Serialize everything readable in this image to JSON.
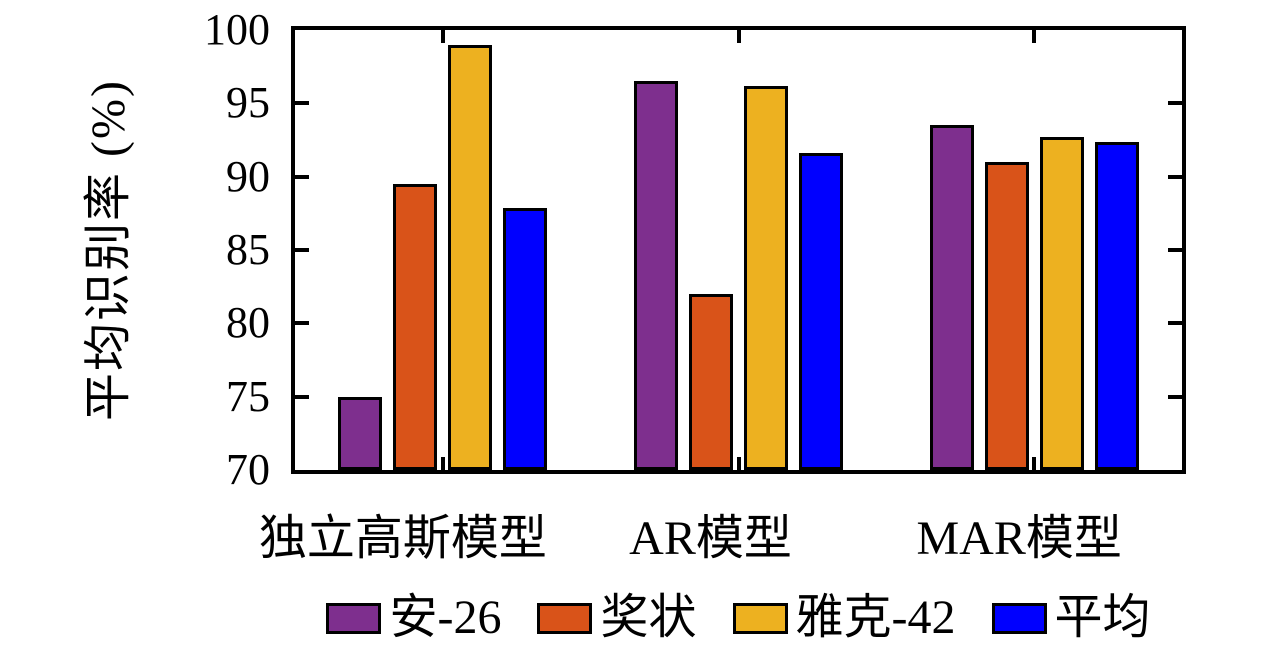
{
  "chart_data": {
    "type": "bar",
    "title": "",
    "xlabel": "",
    "ylabel": "平均识别率 (%)",
    "ylim": [
      70,
      100
    ],
    "yticks": [
      70,
      75,
      80,
      85,
      90,
      95,
      100
    ],
    "grid": false,
    "legend_position": "bottom",
    "categories": [
      "独立高斯模型",
      "AR模型",
      "MAR模型"
    ],
    "series": [
      {
        "name": "安-26",
        "color": "#7E2F8E",
        "values": [
          75.0,
          96.5,
          93.5
        ]
      },
      {
        "name": "奖状",
        "color": "#D95319",
        "values": [
          89.5,
          82.0,
          91.0
        ]
      },
      {
        "name": "雅克-42",
        "color": "#EDB120",
        "values": [
          99.0,
          96.2,
          92.7
        ]
      },
      {
        "name": "平均",
        "color": "#0000FF",
        "values": [
          87.9,
          91.6,
          92.4
        ]
      }
    ]
  }
}
